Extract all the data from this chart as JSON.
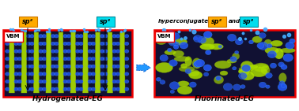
{
  "title_left": "Hydrogenated-EG",
  "title_right": "Fluorinated-EG",
  "vbm_label": "VBM",
  "sp2_label": "sp²",
  "sp3_label": "sp³",
  "hyper_text": "hyperconjugated",
  "and_text": "and",
  "bg_color": "#ffffff",
  "red_box_color": "#ee0000",
  "orange_bg": "#ffaa00",
  "cyan_bg": "#00ddee",
  "arrow_fill": "#2299ff",
  "arrow_edge": "#0055cc",
  "title_fontsize": 6.5,
  "vbm_fontsize": 5.5,
  "label_fontsize": 5.8,
  "ygreen": "#aadd00",
  "blue_orb": "#2255ee",
  "blue_light": "#44aaff",
  "panel_bg": "#111133"
}
